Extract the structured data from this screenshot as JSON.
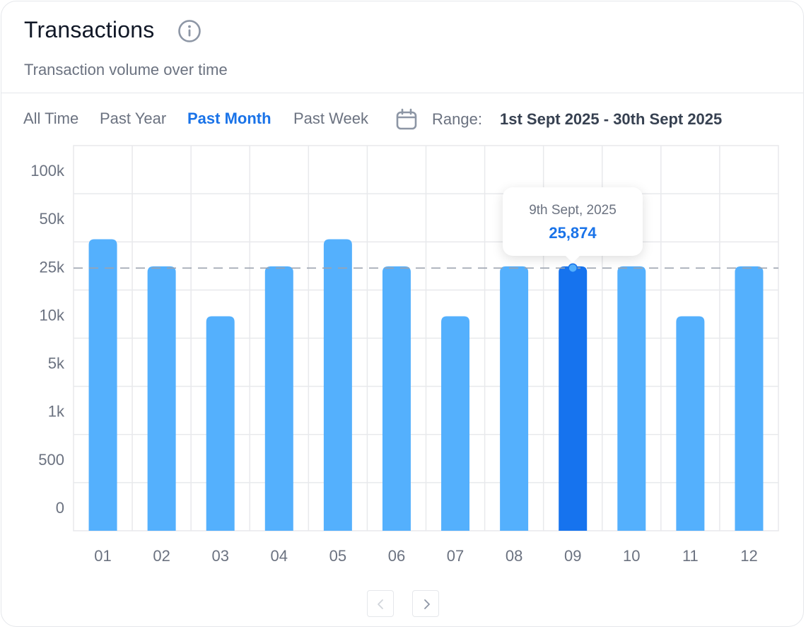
{
  "header": {
    "title": "Transactions",
    "subtitle": "Transaction volume over time",
    "info_icon": "info-icon"
  },
  "tabs": [
    {
      "label": "All Time",
      "active": false
    },
    {
      "label": "Past Year",
      "active": false
    },
    {
      "label": "Past Month",
      "active": true
    },
    {
      "label": "Past Week",
      "active": false
    }
  ],
  "range": {
    "icon": "calendar-icon",
    "label": "Range:",
    "value": "1st Sept 2025 - 30th Sept 2025"
  },
  "tooltip": {
    "date": "9th Sept, 2025",
    "value": "25,874"
  },
  "pagination": {
    "prev_icon": "chevron-left-icon",
    "next_icon": "chevron-right-icon"
  },
  "colors": {
    "accent": "#1a73e8",
    "bar": "#54b0fd",
    "bar_active": "#1673ee",
    "grid": "#e8e9ec",
    "reference_line": "#9ca3af",
    "axis_text": "#6b7280"
  },
  "chart_data": {
    "type": "bar",
    "title": "",
    "xlabel": "",
    "ylabel": "",
    "y_scale": "categorical-ticks",
    "yticks": [
      "0",
      "500",
      "1k",
      "5k",
      "10k",
      "25k",
      "50k",
      "100k"
    ],
    "y_tick_values": [
      0,
      500,
      1000,
      5000,
      10000,
      25000,
      50000,
      100000
    ],
    "categories": [
      "01",
      "02",
      "03",
      "04",
      "05",
      "06",
      "07",
      "08",
      "09",
      "10",
      "11",
      "12"
    ],
    "values": [
      40000,
      25874,
      10000,
      25874,
      40000,
      25874,
      10000,
      25874,
      25874,
      25874,
      10000,
      25874
    ],
    "highlighted_index": 8,
    "reference_line": 25000,
    "grid": true
  }
}
